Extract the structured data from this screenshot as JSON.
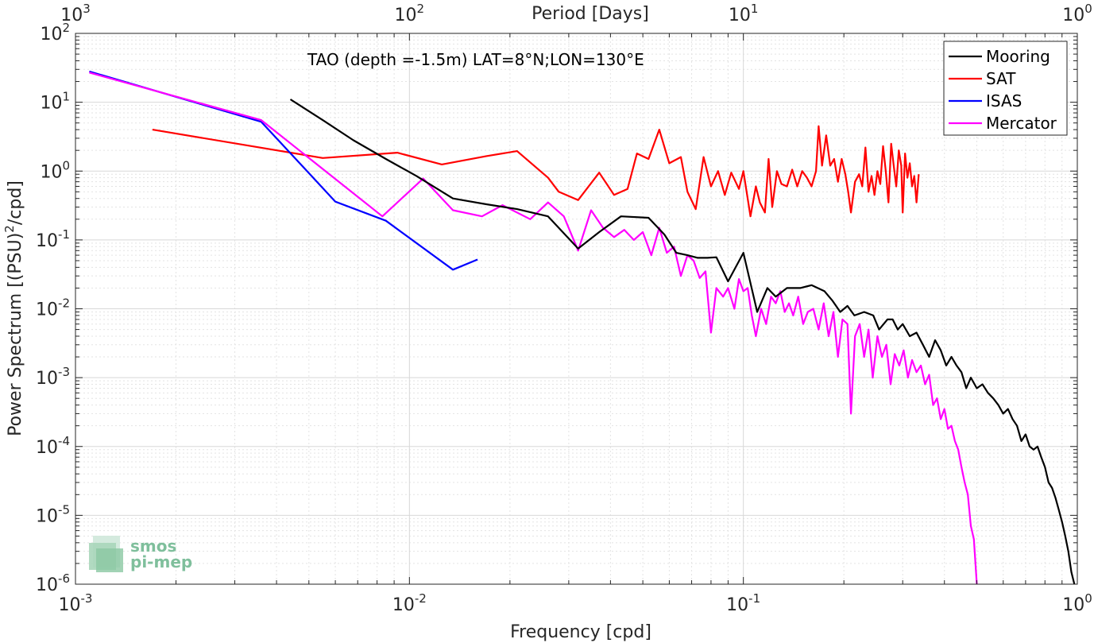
{
  "chart_data": {
    "type": "line",
    "title": "TAO (depth =-1.5m) LAT=8°N;LON=130°E",
    "xlabel": "Frequency [cpd]",
    "ylabel_main": "Power Spectrum [(PSU)",
    "ylabel_sup": "2",
    "ylabel_tail": "/cpd]",
    "top_xlabel": "Period [Days]",
    "x_scale": "log",
    "y_scale": "log",
    "xlim": [
      0.001,
      1
    ],
    "ylim": [
      1e-06,
      100
    ],
    "grid": true,
    "legend_position": "top-right",
    "x_ticks": [
      {
        "value": 0.001,
        "base": "10",
        "exp": "-3"
      },
      {
        "value": 0.01,
        "base": "10",
        "exp": "-2"
      },
      {
        "value": 0.1,
        "base": "10",
        "exp": "-1"
      },
      {
        "value": 1,
        "base": "10",
        "exp": "0"
      }
    ],
    "y_ticks": [
      {
        "value": 1e-06,
        "base": "10",
        "exp": "-6"
      },
      {
        "value": 1e-05,
        "base": "10",
        "exp": "-5"
      },
      {
        "value": 0.0001,
        "base": "10",
        "exp": "-4"
      },
      {
        "value": 0.001,
        "base": "10",
        "exp": "-3"
      },
      {
        "value": 0.01,
        "base": "10",
        "exp": "-2"
      },
      {
        "value": 0.1,
        "base": "10",
        "exp": "-1"
      },
      {
        "value": 1,
        "base": "10",
        "exp": "0"
      },
      {
        "value": 10,
        "base": "10",
        "exp": "1"
      },
      {
        "value": 100,
        "base": "10",
        "exp": "2"
      }
    ],
    "top_ticks": [
      {
        "freq": 0.001,
        "base": "10",
        "exp": "3"
      },
      {
        "freq": 0.01,
        "base": "10",
        "exp": "2"
      },
      {
        "freq": 0.1,
        "base": "10",
        "exp": "1"
      },
      {
        "freq": 1,
        "base": "10",
        "exp": "0"
      }
    ],
    "series": [
      {
        "name": "Mooring",
        "color": "#000000",
        "points": [
          [
            0.0044,
            11
          ],
          [
            0.0055,
            5.5
          ],
          [
            0.0068,
            2.8
          ],
          [
            0.0085,
            1.5
          ],
          [
            0.0105,
            0.85
          ],
          [
            0.0135,
            0.4
          ],
          [
            0.017,
            0.33
          ],
          [
            0.021,
            0.28
          ],
          [
            0.026,
            0.22
          ],
          [
            0.032,
            0.075
          ],
          [
            0.037,
            0.13
          ],
          [
            0.043,
            0.22
          ],
          [
            0.052,
            0.21
          ],
          [
            0.058,
            0.12
          ],
          [
            0.063,
            0.065
          ],
          [
            0.068,
            0.06
          ],
          [
            0.073,
            0.055
          ],
          [
            0.078,
            0.055
          ],
          [
            0.083,
            0.056
          ],
          [
            0.09,
            0.025
          ],
          [
            0.1,
            0.065
          ],
          [
            0.11,
            0.009
          ],
          [
            0.118,
            0.02
          ],
          [
            0.125,
            0.015
          ],
          [
            0.135,
            0.02
          ],
          [
            0.148,
            0.02
          ],
          [
            0.16,
            0.022
          ],
          [
            0.175,
            0.018
          ],
          [
            0.185,
            0.013
          ],
          [
            0.195,
            0.009
          ],
          [
            0.205,
            0.011
          ],
          [
            0.215,
            0.008
          ],
          [
            0.23,
            0.009
          ],
          [
            0.245,
            0.008
          ],
          [
            0.255,
            0.005
          ],
          [
            0.27,
            0.007
          ],
          [
            0.28,
            0.007
          ],
          [
            0.29,
            0.005
          ],
          [
            0.3,
            0.006
          ],
          [
            0.315,
            0.004
          ],
          [
            0.33,
            0.0045
          ],
          [
            0.345,
            0.003
          ],
          [
            0.36,
            0.002
          ],
          [
            0.375,
            0.0035
          ],
          [
            0.39,
            0.0025
          ],
          [
            0.405,
            0.0015
          ],
          [
            0.42,
            0.002
          ],
          [
            0.435,
            0.0015
          ],
          [
            0.45,
            0.0012
          ],
          [
            0.465,
            0.0007
          ],
          [
            0.48,
            0.001
          ],
          [
            0.5,
            0.0007
          ],
          [
            0.52,
            0.0008
          ],
          [
            0.54,
            0.0006
          ],
          [
            0.56,
            0.0005
          ],
          [
            0.58,
            0.0004
          ],
          [
            0.6,
            0.0003
          ],
          [
            0.62,
            0.00035
          ],
          [
            0.64,
            0.00025
          ],
          [
            0.66,
            0.0002
          ],
          [
            0.68,
            0.00012
          ],
          [
            0.7,
            0.00015
          ],
          [
            0.72,
            0.0001
          ],
          [
            0.74,
            9e-05
          ],
          [
            0.76,
            0.0001
          ],
          [
            0.78,
            7e-05
          ],
          [
            0.8,
            5e-05
          ],
          [
            0.82,
            3e-05
          ],
          [
            0.84,
            2.5e-05
          ],
          [
            0.86,
            1.8e-05
          ],
          [
            0.88,
            1.2e-05
          ],
          [
            0.9,
            8e-06
          ],
          [
            0.92,
            5e-06
          ],
          [
            0.94,
            3e-06
          ],
          [
            0.96,
            1.5e-06
          ],
          [
            0.98,
            1e-06
          ]
        ]
      },
      {
        "name": "SAT",
        "color": "#ff0000",
        "points": [
          [
            0.0017,
            4
          ],
          [
            0.0055,
            1.55
          ],
          [
            0.0092,
            1.85
          ],
          [
            0.0125,
            1.25
          ],
          [
            0.017,
            1.65
          ],
          [
            0.021,
            1.95
          ],
          [
            0.026,
            0.8
          ],
          [
            0.028,
            0.5
          ],
          [
            0.032,
            0.38
          ],
          [
            0.037,
            0.95
          ],
          [
            0.041,
            0.45
          ],
          [
            0.045,
            0.55
          ],
          [
            0.048,
            1.8
          ],
          [
            0.052,
            1.5
          ],
          [
            0.056,
            4
          ],
          [
            0.06,
            1.3
          ],
          [
            0.065,
            1.6
          ],
          [
            0.068,
            0.5
          ],
          [
            0.072,
            0.28
          ],
          [
            0.076,
            1.6
          ],
          [
            0.08,
            0.6
          ],
          [
            0.084,
            1.0
          ],
          [
            0.088,
            0.45
          ],
          [
            0.092,
            0.95
          ],
          [
            0.097,
            0.55
          ],
          [
            0.1,
            1.0
          ],
          [
            0.105,
            0.22
          ],
          [
            0.109,
            0.6
          ],
          [
            0.112,
            0.35
          ],
          [
            0.116,
            0.25
          ],
          [
            0.119,
            1.5
          ],
          [
            0.122,
            0.3
          ],
          [
            0.126,
            1.0
          ],
          [
            0.13,
            0.65
          ],
          [
            0.135,
            0.6
          ],
          [
            0.14,
            1.05
          ],
          [
            0.145,
            0.6
          ],
          [
            0.15,
            1.0
          ],
          [
            0.155,
            0.8
          ],
          [
            0.16,
            0.6
          ],
          [
            0.165,
            1.0
          ],
          [
            0.168,
            4.5
          ],
          [
            0.172,
            1.2
          ],
          [
            0.177,
            3.3
          ],
          [
            0.182,
            1.2
          ],
          [
            0.187,
            1.5
          ],
          [
            0.192,
            0.7
          ],
          [
            0.197,
            1.5
          ],
          [
            0.202,
            0.9
          ],
          [
            0.206,
            0.5
          ],
          [
            0.21,
            0.25
          ],
          [
            0.216,
            0.7
          ],
          [
            0.222,
            0.9
          ],
          [
            0.227,
            0.6
          ],
          [
            0.232,
            2.2
          ],
          [
            0.237,
            0.5
          ],
          [
            0.242,
            0.85
          ],
          [
            0.247,
            0.45
          ],
          [
            0.252,
            1.0
          ],
          [
            0.257,
            0.65
          ],
          [
            0.262,
            2.3
          ],
          [
            0.267,
            1.0
          ],
          [
            0.272,
            0.35
          ],
          [
            0.277,
            2.5
          ],
          [
            0.282,
            1.2
          ],
          [
            0.287,
            0.6
          ],
          [
            0.292,
            2.0
          ],
          [
            0.297,
            1.2
          ],
          [
            0.3,
            0.25
          ],
          [
            0.305,
            1.8
          ],
          [
            0.31,
            0.8
          ],
          [
            0.315,
            1.3
          ],
          [
            0.32,
            0.6
          ],
          [
            0.325,
            0.85
          ],
          [
            0.33,
            0.35
          ],
          [
            0.335,
            0.9
          ]
        ]
      },
      {
        "name": "ISAS",
        "color": "#0000ff",
        "points": [
          [
            0.0011,
            28
          ],
          [
            0.0036,
            5.2
          ],
          [
            0.006,
            0.36
          ],
          [
            0.0085,
            0.19
          ],
          [
            0.0135,
            0.037
          ],
          [
            0.016,
            0.052
          ]
        ]
      },
      {
        "name": "Mercator",
        "color": "#ff00ff",
        "points": [
          [
            0.0011,
            27
          ],
          [
            0.0036,
            5.5
          ],
          [
            0.0083,
            0.22
          ],
          [
            0.011,
            0.78
          ],
          [
            0.0135,
            0.27
          ],
          [
            0.0165,
            0.22
          ],
          [
            0.019,
            0.32
          ],
          [
            0.023,
            0.2
          ],
          [
            0.026,
            0.35
          ],
          [
            0.029,
            0.22
          ],
          [
            0.032,
            0.07
          ],
          [
            0.035,
            0.27
          ],
          [
            0.038,
            0.15
          ],
          [
            0.041,
            0.11
          ],
          [
            0.044,
            0.14
          ],
          [
            0.047,
            0.1
          ],
          [
            0.05,
            0.13
          ],
          [
            0.053,
            0.06
          ],
          [
            0.056,
            0.15
          ],
          [
            0.059,
            0.065
          ],
          [
            0.062,
            0.08
          ],
          [
            0.065,
            0.03
          ],
          [
            0.068,
            0.06
          ],
          [
            0.071,
            0.05
          ],
          [
            0.074,
            0.028
          ],
          [
            0.077,
            0.035
          ],
          [
            0.08,
            0.0045
          ],
          [
            0.083,
            0.02
          ],
          [
            0.087,
            0.015
          ],
          [
            0.09,
            0.02
          ],
          [
            0.094,
            0.01
          ],
          [
            0.097,
            0.027
          ],
          [
            0.1,
            0.018
          ],
          [
            0.103,
            0.02
          ],
          [
            0.106,
            0.008
          ],
          [
            0.109,
            0.004
          ],
          [
            0.113,
            0.01
          ],
          [
            0.117,
            0.006
          ],
          [
            0.121,
            0.015
          ],
          [
            0.125,
            0.012
          ],
          [
            0.129,
            0.018
          ],
          [
            0.133,
            0.009
          ],
          [
            0.137,
            0.012
          ],
          [
            0.141,
            0.008
          ],
          [
            0.146,
            0.015
          ],
          [
            0.151,
            0.006
          ],
          [
            0.156,
            0.009
          ],
          [
            0.162,
            0.01
          ],
          [
            0.168,
            0.005
          ],
          [
            0.174,
            0.012
          ],
          [
            0.18,
            0.004
          ],
          [
            0.186,
            0.009
          ],
          [
            0.192,
            0.002
          ],
          [
            0.198,
            0.007
          ],
          [
            0.205,
            0.006
          ],
          [
            0.21,
            0.0003
          ],
          [
            0.216,
            0.004
          ],
          [
            0.223,
            0.006
          ],
          [
            0.23,
            0.002
          ],
          [
            0.237,
            0.005
          ],
          [
            0.244,
            0.001
          ],
          [
            0.252,
            0.004
          ],
          [
            0.26,
            0.002
          ],
          [
            0.268,
            0.003
          ],
          [
            0.276,
            0.0008
          ],
          [
            0.284,
            0.0022
          ],
          [
            0.293,
            0.0015
          ],
          [
            0.302,
            0.0025
          ],
          [
            0.311,
            0.001
          ],
          [
            0.32,
            0.0018
          ],
          [
            0.33,
            0.0012
          ],
          [
            0.34,
            0.0015
          ],
          [
            0.35,
            0.0008
          ],
          [
            0.36,
            0.0011
          ],
          [
            0.37,
            0.0004
          ],
          [
            0.38,
            0.0005
          ],
          [
            0.39,
            0.00025
          ],
          [
            0.4,
            0.00035
          ],
          [
            0.41,
            0.00018
          ],
          [
            0.42,
            0.0002
          ],
          [
            0.43,
            0.00012
          ],
          [
            0.44,
            9e-05
          ],
          [
            0.45,
            5e-05
          ],
          [
            0.46,
            3e-05
          ],
          [
            0.47,
            2e-05
          ],
          [
            0.48,
            7e-06
          ],
          [
            0.49,
            4.5e-06
          ],
          [
            0.5,
            1e-06
          ]
        ]
      }
    ],
    "logo": {
      "line1": "smos",
      "line2": "pi-mep"
    }
  }
}
